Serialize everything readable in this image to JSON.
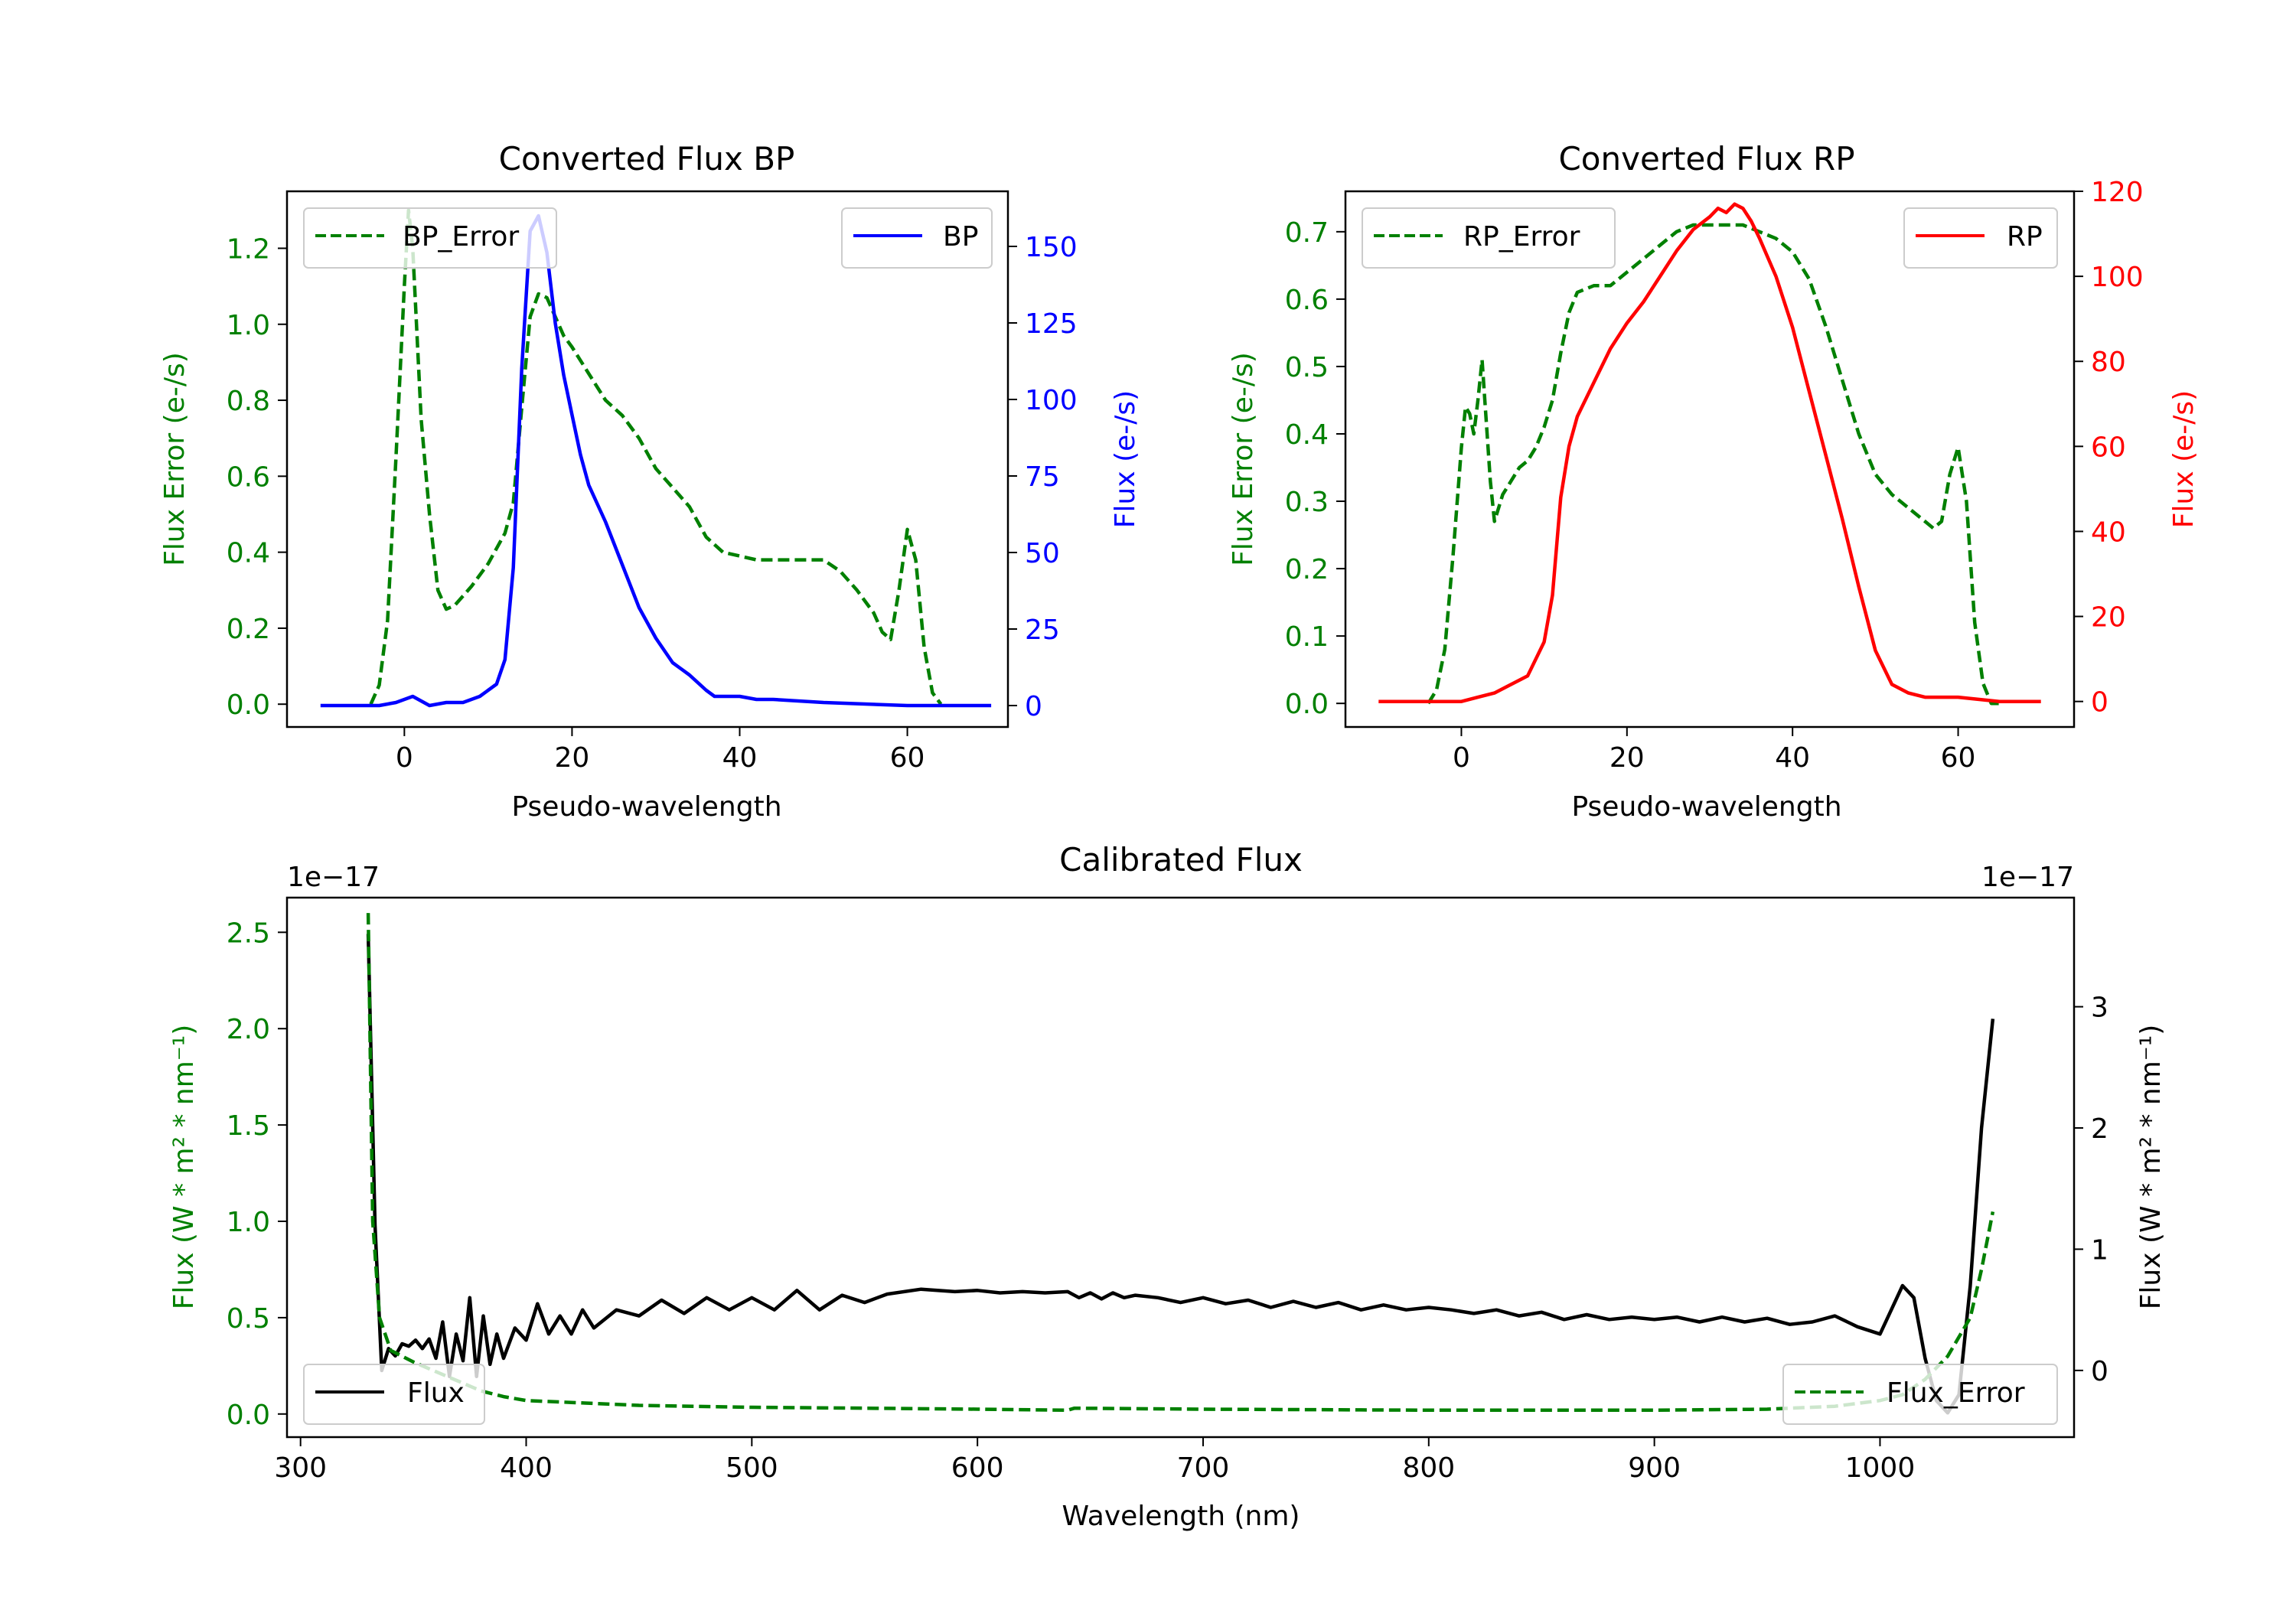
{
  "chart_data": [
    {
      "type": "line",
      "id": "bp",
      "title": "Converted Flux BP",
      "xlabel": "Pseudo-wavelength",
      "ylabel_left": "Flux Error (e-/s)",
      "ylabel_right": "Flux (e-/s)",
      "xlim": [
        -14,
        72
      ],
      "ylim_left": [
        -0.06,
        1.35
      ],
      "ylim_right": [
        -7,
        168
      ],
      "xticks": [
        0,
        20,
        40,
        60
      ],
      "yticks_left": [
        0.0,
        0.2,
        0.4,
        0.6,
        0.8,
        1.0,
        1.2
      ],
      "yticks_right": [
        0,
        25,
        50,
        75,
        100,
        125,
        150
      ],
      "colors": {
        "left": "#008000",
        "right": "#0000ff"
      },
      "series": [
        {
          "name": "BP_Error",
          "legend_label": "BP_Error",
          "axis": "left",
          "style": "dashed",
          "color": "#008000",
          "x": [
            -4,
            -3,
            -2,
            -1,
            0,
            0.5,
            1,
            2,
            3,
            4,
            5,
            6,
            8,
            10,
            12,
            13,
            14,
            15,
            16,
            17,
            18,
            19,
            20,
            22,
            24,
            26,
            28,
            30,
            32,
            34,
            36,
            38,
            40,
            42,
            44,
            46,
            48,
            50,
            52,
            54,
            56,
            57,
            58,
            59,
            60,
            61,
            62,
            63,
            64
          ],
          "values": [
            0.0,
            0.05,
            0.22,
            0.65,
            1.1,
            1.3,
            1.2,
            0.75,
            0.5,
            0.3,
            0.25,
            0.26,
            0.31,
            0.37,
            0.45,
            0.53,
            0.78,
            1.02,
            1.08,
            1.07,
            1.02,
            0.97,
            0.94,
            0.87,
            0.8,
            0.76,
            0.7,
            0.62,
            0.57,
            0.52,
            0.44,
            0.4,
            0.39,
            0.38,
            0.38,
            0.38,
            0.38,
            0.38,
            0.35,
            0.3,
            0.24,
            0.19,
            0.17,
            0.3,
            0.46,
            0.38,
            0.15,
            0.03,
            0.0
          ]
        },
        {
          "name": "BP",
          "legend_label": "BP",
          "axis": "right",
          "style": "solid",
          "color": "#0000ff",
          "x": [
            -10,
            -6,
            -3,
            -1,
            1,
            3,
            5,
            7,
            9,
            11,
            12,
            13,
            14,
            15,
            16,
            17,
            18,
            19,
            20,
            21,
            22,
            24,
            26,
            28,
            30,
            32,
            34,
            36,
            37,
            38,
            40,
            42,
            44,
            50,
            60,
            70
          ],
          "values": [
            0,
            0,
            0,
            1,
            3,
            0,
            1,
            1,
            3,
            7,
            15,
            45,
            110,
            155,
            160,
            148,
            125,
            108,
            95,
            82,
            72,
            60,
            46,
            32,
            22,
            14,
            10,
            5,
            3,
            3,
            3,
            2,
            2,
            1,
            0,
            0
          ]
        }
      ]
    },
    {
      "type": "line",
      "id": "rp",
      "title": "Converted Flux RP",
      "xlabel": "Pseudo-wavelength",
      "ylabel_left": "Flux Error (e-/s)",
      "ylabel_right": "Flux (e-/s)",
      "xlim": [
        -14,
        74
      ],
      "ylim_left": [
        -0.035,
        0.76
      ],
      "ylim_right": [
        -6,
        120
      ],
      "xticks": [
        0,
        20,
        40,
        60
      ],
      "yticks_left": [
        0.0,
        0.1,
        0.2,
        0.3,
        0.4,
        0.5,
        0.6,
        0.7
      ],
      "yticks_right": [
        0,
        20,
        40,
        60,
        80,
        100,
        120
      ],
      "colors": {
        "left": "#008000",
        "right": "#ff0000"
      },
      "series": [
        {
          "name": "RP_Error",
          "legend_label": "RP_Error",
          "axis": "left",
          "style": "dashed",
          "color": "#008000",
          "x": [
            -4,
            -3,
            -2,
            -1,
            0,
            0.5,
            1,
            1.5,
            2,
            2.5,
            3,
            3.5,
            4,
            5,
            6,
            7,
            8,
            9,
            10,
            11,
            12,
            13,
            14,
            16,
            18,
            20,
            22,
            24,
            26,
            28,
            30,
            32,
            34,
            36,
            38,
            40,
            42,
            44,
            46,
            48,
            50,
            52,
            54,
            56,
            57,
            58,
            59,
            60,
            61,
            62,
            63,
            64,
            65
          ],
          "values": [
            0.0,
            0.02,
            0.08,
            0.22,
            0.38,
            0.44,
            0.43,
            0.4,
            0.45,
            0.51,
            0.42,
            0.33,
            0.27,
            0.31,
            0.33,
            0.35,
            0.36,
            0.38,
            0.41,
            0.45,
            0.52,
            0.58,
            0.61,
            0.62,
            0.62,
            0.64,
            0.66,
            0.68,
            0.7,
            0.71,
            0.71,
            0.71,
            0.71,
            0.7,
            0.69,
            0.67,
            0.63,
            0.56,
            0.48,
            0.4,
            0.34,
            0.31,
            0.29,
            0.27,
            0.26,
            0.27,
            0.34,
            0.38,
            0.3,
            0.12,
            0.03,
            0.0,
            0.0
          ]
        },
        {
          "name": "RP",
          "legend_label": "RP",
          "axis": "right",
          "style": "solid",
          "color": "#ff0000",
          "x": [
            -10,
            -5,
            0,
            2,
            4,
            6,
            8,
            10,
            11,
            12,
            13,
            14,
            16,
            18,
            20,
            22,
            24,
            26,
            28,
            30,
            31,
            32,
            33,
            34,
            35,
            36,
            38,
            40,
            42,
            44,
            46,
            48,
            50,
            52,
            54,
            56,
            60,
            65,
            70
          ],
          "values": [
            0,
            0,
            0,
            1,
            2,
            4,
            6,
            14,
            25,
            48,
            60,
            67,
            75,
            83,
            89,
            94,
            100,
            106,
            111,
            114,
            116,
            115,
            117,
            116,
            113,
            109,
            100,
            88,
            73,
            58,
            43,
            27,
            12,
            4,
            2,
            1,
            1,
            0,
            0
          ]
        }
      ]
    },
    {
      "type": "line",
      "id": "cal",
      "title": "Calibrated Flux",
      "xlabel": "Wavelength (nm)",
      "ylabel_left": "Flux (W * m² * nm⁻¹)",
      "ylabel_right": "Flux (W * m² * nm⁻¹)",
      "offset_left": "1e−17",
      "offset_right": "1e−17",
      "xlim": [
        294,
        1086
      ],
      "ylim_left": [
        -0.12,
        2.68
      ],
      "ylim_right": [
        -0.55,
        3.9
      ],
      "xticks": [
        300,
        400,
        500,
        600,
        700,
        800,
        900,
        1000
      ],
      "yticks_left": [
        0.0,
        0.5,
        1.0,
        1.5,
        2.0,
        2.5
      ],
      "yticks_right": [
        0,
        1,
        2,
        3
      ],
      "colors": {
        "left": "#008000",
        "right": "#000000"
      },
      "series": [
        {
          "name": "Flux",
          "legend_label": "Flux",
          "axis": "right",
          "style": "solid",
          "color": "#000000",
          "x": [
            330,
            333,
            336,
            339,
            342,
            345,
            348,
            351,
            354,
            357,
            360,
            363,
            366,
            369,
            372,
            375,
            378,
            381,
            384,
            387,
            390,
            395,
            400,
            405,
            410,
            415,
            420,
            425,
            430,
            440,
            450,
            460,
            470,
            480,
            490,
            500,
            510,
            520,
            530,
            540,
            550,
            560,
            575,
            590,
            600,
            610,
            620,
            630,
            640,
            645,
            650,
            655,
            660,
            665,
            670,
            680,
            690,
            700,
            710,
            720,
            730,
            740,
            750,
            760,
            770,
            780,
            790,
            800,
            810,
            820,
            830,
            840,
            850,
            860,
            870,
            880,
            890,
            900,
            910,
            920,
            930,
            940,
            950,
            960,
            970,
            980,
            990,
            1000,
            1005,
            1010,
            1015,
            1020,
            1025,
            1030,
            1035,
            1040,
            1045,
            1050
          ],
          "values": [
            3.6,
            1.2,
            0.0,
            0.18,
            0.12,
            0.22,
            0.2,
            0.25,
            0.18,
            0.26,
            0.1,
            0.4,
            -0.05,
            0.3,
            0.08,
            0.6,
            -0.05,
            0.45,
            0.05,
            0.3,
            0.1,
            0.35,
            0.25,
            0.55,
            0.3,
            0.45,
            0.3,
            0.5,
            0.35,
            0.5,
            0.45,
            0.58,
            0.47,
            0.6,
            0.5,
            0.6,
            0.5,
            0.66,
            0.5,
            0.62,
            0.56,
            0.63,
            0.67,
            0.65,
            0.66,
            0.64,
            0.65,
            0.64,
            0.65,
            0.6,
            0.64,
            0.59,
            0.64,
            0.6,
            0.62,
            0.6,
            0.56,
            0.6,
            0.55,
            0.58,
            0.52,
            0.57,
            0.52,
            0.56,
            0.5,
            0.54,
            0.5,
            0.52,
            0.5,
            0.47,
            0.5,
            0.45,
            0.48,
            0.42,
            0.46,
            0.42,
            0.44,
            0.42,
            0.44,
            0.4,
            0.44,
            0.4,
            0.43,
            0.38,
            0.4,
            0.45,
            0.36,
            0.3,
            0.5,
            0.7,
            0.6,
            0.1,
            -0.25,
            -0.35,
            -0.2,
            0.7,
            2.0,
            2.9
          ]
        },
        {
          "name": "Flux_Error",
          "legend_label": "Flux_Error",
          "axis": "left",
          "style": "dashed",
          "color": "#008000",
          "x": [
            330,
            332,
            335,
            340,
            350,
            360,
            370,
            380,
            390,
            400,
            420,
            450,
            500,
            550,
            600,
            640,
            643,
            700,
            800,
            900,
            950,
            980,
            1000,
            1010,
            1020,
            1030,
            1040,
            1045,
            1050
          ],
          "values": [
            2.6,
            1.0,
            0.5,
            0.33,
            0.27,
            0.22,
            0.17,
            0.12,
            0.09,
            0.07,
            0.06,
            0.045,
            0.035,
            0.03,
            0.025,
            0.02,
            0.03,
            0.025,
            0.02,
            0.02,
            0.025,
            0.04,
            0.07,
            0.1,
            0.18,
            0.3,
            0.5,
            0.75,
            1.05
          ]
        }
      ]
    }
  ]
}
